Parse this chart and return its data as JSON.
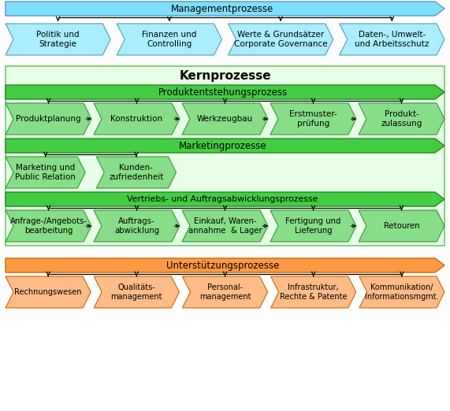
{
  "bg_color": "#ffffff",
  "management": {
    "arrow_label": "Managementprozesse",
    "arrow_color": "#7fdfff",
    "arrow_border": "#5599bb",
    "sub_items": [
      "Politik und\nStrategie",
      "Finanzen und\nControlling",
      "Werte & Grundsätzer\nCorporate Governance",
      "Daten-, Umwelt-\nund Arbeitsschutz"
    ],
    "sub_color": "#aaeeff",
    "sub_border": "#5599bb"
  },
  "kern": {
    "title": "Kernprozesse",
    "bg_color": "#e8ffe8",
    "bg_border": "#66cc66",
    "subsections": [
      {
        "arrow_label": "Produktentstehungsprozess",
        "arrow_color": "#44cc44",
        "arrow_border": "#228822",
        "sub_items": [
          "Produktplanung",
          "Konstruktion",
          "Werkzeugbau",
          "Erstmuster-\nprüfung",
          "Produkt-\nzulassung"
        ],
        "sub_color": "#88dd88",
        "sub_border": "#339933",
        "has_process_arrows": true
      },
      {
        "arrow_label": "Marketingprozesse",
        "arrow_color": "#44cc44",
        "arrow_border": "#228822",
        "sub_items": [
          "Marketing und\nPublic Relation",
          "Kunden-\nzufriedenheit"
        ],
        "sub_color": "#88dd88",
        "sub_border": "#339933",
        "has_process_arrows": false
      },
      {
        "arrow_label": "Vertriebs- und Auftragsabwicklungsprozesse",
        "arrow_color": "#44cc44",
        "arrow_border": "#228822",
        "sub_items": [
          "Anfrage-/Angebots-\nbearbeitung",
          "Auftrags-\nabwicklung",
          "Einkauf, Waren-\nannahme  & Lager",
          "Fertigung und\nLieferung",
          "Retouren"
        ],
        "sub_color": "#88dd88",
        "sub_border": "#339933",
        "has_process_arrows": true
      }
    ]
  },
  "support": {
    "arrow_label": "Unterstützungsprozesse",
    "arrow_color": "#ff9944",
    "arrow_border": "#cc6600",
    "sub_items": [
      "Rechnungswesen",
      "Qualitäts-\nmanagement",
      "Personal-\nmanagement",
      "Infrastruktur,\nRechte & Patente",
      "Kommunikation/\nInformationsmgmt."
    ],
    "sub_color": "#ffbb88",
    "sub_border": "#cc6600"
  }
}
